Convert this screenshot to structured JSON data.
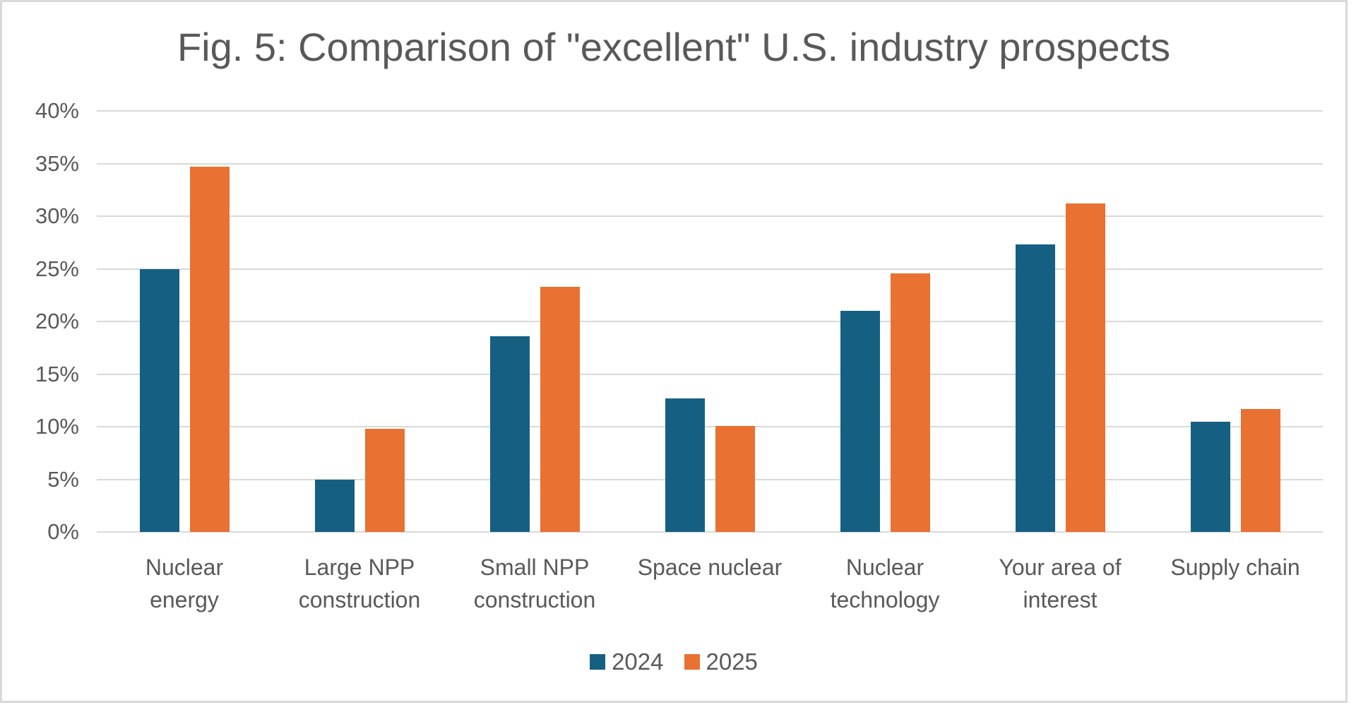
{
  "chart": {
    "title": "Fig. 5: Comparison of \"excellent\" U.S. industry prospects"
  },
  "chart_data": {
    "type": "bar",
    "title": "Fig. 5: Comparison of \"excellent\" U.S. industry prospects",
    "categories": [
      "Nuclear energy",
      "Large NPP construction",
      "Small NPP construction",
      "Space nuclear",
      "Nuclear technology",
      "Your area of interest",
      "Supply chain"
    ],
    "category_label_lines": [
      [
        "Nuclear",
        "energy"
      ],
      [
        "Large NPP",
        "construction"
      ],
      [
        "Small NPP",
        "construction"
      ],
      [
        "Space nuclear"
      ],
      [
        "Nuclear",
        "technology"
      ],
      [
        "Your area of",
        "interest"
      ],
      [
        "Supply chain"
      ]
    ],
    "series": [
      {
        "name": "2024",
        "color": "#156082",
        "values": [
          25.0,
          5.0,
          18.6,
          12.7,
          21.0,
          27.3,
          10.5
        ]
      },
      {
        "name": "2025",
        "color": "#E97132",
        "values": [
          34.7,
          9.8,
          23.3,
          10.1,
          24.6,
          31.2,
          11.7
        ]
      }
    ],
    "value_unit": "%",
    "xlabel": "",
    "ylabel": "",
    "ylim": [
      0,
      40
    ],
    "ytick_step": 5,
    "ytick_labels_top_to_bottom": [
      "40%",
      "35%",
      "30%",
      "25%",
      "20%",
      "15%",
      "10%",
      "5%",
      "0%"
    ],
    "grid": "horizontal",
    "legend_position": "bottom",
    "colors": {
      "grid": "#D9D9D9",
      "frame_border": "#D9D9D9",
      "axis_text": "#595959",
      "title_text": "#595959",
      "background": "#FFFFFF"
    }
  }
}
